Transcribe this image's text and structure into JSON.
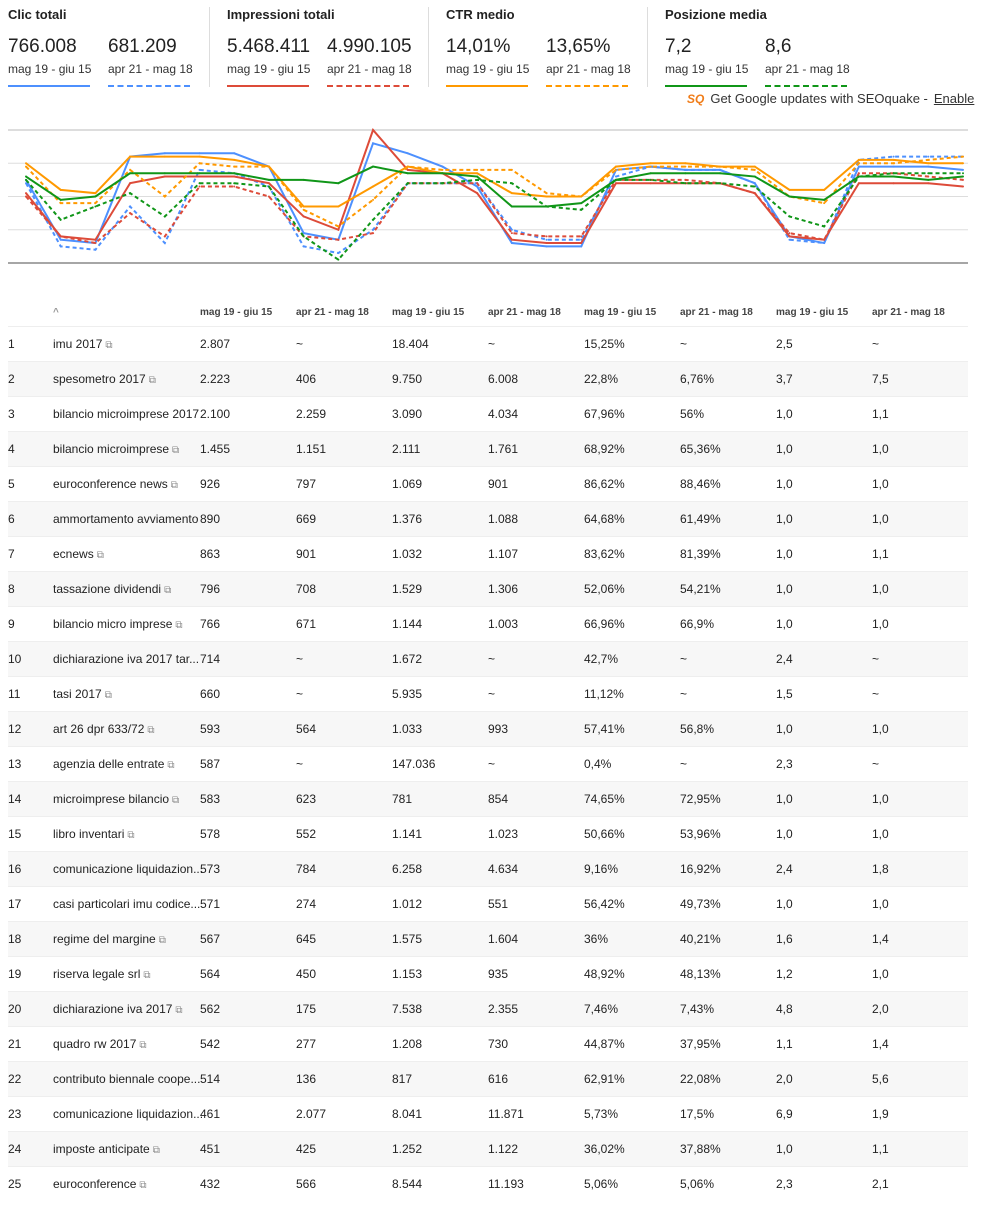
{
  "metrics": [
    {
      "title": "Clic totali",
      "current": "766.008",
      "previous": "681.209",
      "current_range": "mag 19 - giu 15",
      "previous_range": "apr 21 - mag 18",
      "color": "#4d90fe"
    },
    {
      "title": "Impressioni totali",
      "current": "5.468.411",
      "previous": "4.990.105",
      "current_range": "mag 19 - giu 15",
      "previous_range": "apr 21 - mag 18",
      "color": "#dd4b39"
    },
    {
      "title": "CTR medio",
      "current": "14,01%",
      "previous": "13,65%",
      "current_range": "mag 19 - giu 15",
      "previous_range": "apr 21 - mag 18",
      "color": "#ff9900"
    },
    {
      "title": "Posizione media",
      "current": "7,2",
      "previous": "8,6",
      "current_range": "mag 19 - giu 15",
      "previous_range": "apr 21 - mag 18",
      "color": "#109618"
    }
  ],
  "seoquake": {
    "logo": "SQ",
    "text": "Get Google updates with SEOquake -",
    "link": "Enable"
  },
  "chart_data": {
    "type": "line",
    "title": "",
    "xlabel": "",
    "ylabel": "",
    "note": "normalized relative scale, 28 daily points",
    "ylim": [
      0,
      4
    ],
    "grid": true,
    "series": [
      {
        "name": "Clic mag 19 - giu 15",
        "color": "#4d90fe",
        "dashed": false,
        "values": [
          2.5,
          0.7,
          0.6,
          3.2,
          3.3,
          3.3,
          3.3,
          2.9,
          0.9,
          0.7,
          3.6,
          3.3,
          2.9,
          2.3,
          0.6,
          0.5,
          0.5,
          2.8,
          2.9,
          2.8,
          2.8,
          2.4,
          0.8,
          0.6,
          2.9,
          2.9,
          2.9,
          2.8
        ]
      },
      {
        "name": "Clic apr 21 - mag 18",
        "color": "#4d90fe",
        "dashed": true,
        "values": [
          2.4,
          0.5,
          0.4,
          1.7,
          0.6,
          2.8,
          2.7,
          2.3,
          0.5,
          0.3,
          1.0,
          2.4,
          2.4,
          2.4,
          1.0,
          0.7,
          0.7,
          2.6,
          2.9,
          2.8,
          2.8,
          2.4,
          0.7,
          0.6,
          3.1,
          3.2,
          3.2,
          3.2
        ]
      },
      {
        "name": "Impressioni mag 19 - giu 15",
        "color": "#dd4b39",
        "dashed": false,
        "values": [
          2.1,
          0.8,
          0.7,
          2.4,
          2.6,
          2.6,
          2.6,
          2.4,
          1.4,
          1.0,
          4.0,
          2.8,
          2.7,
          2.1,
          0.7,
          0.6,
          0.6,
          2.4,
          2.4,
          2.4,
          2.4,
          2.1,
          0.8,
          0.7,
          2.4,
          2.4,
          2.4,
          2.3
        ]
      },
      {
        "name": "Impressioni apr 21 - mag 18",
        "color": "#dd4b39",
        "dashed": true,
        "values": [
          2.0,
          0.8,
          0.6,
          1.5,
          0.8,
          2.3,
          2.3,
          2.0,
          0.8,
          0.7,
          0.9,
          2.4,
          2.4,
          2.4,
          0.9,
          0.8,
          0.8,
          2.5,
          2.5,
          2.5,
          2.4,
          2.1,
          0.9,
          0.7,
          2.7,
          2.7,
          2.6,
          2.5
        ]
      },
      {
        "name": "CTR mag 19 - giu 15",
        "color": "#ff9900",
        "dashed": false,
        "values": [
          3.0,
          2.2,
          2.1,
          3.2,
          3.2,
          3.2,
          3.1,
          2.9,
          1.7,
          1.7,
          2.3,
          2.9,
          2.7,
          2.7,
          2.1,
          2.0,
          2.0,
          2.9,
          3.0,
          3.0,
          2.9,
          2.9,
          2.2,
          2.2,
          3.1,
          3.1,
          3.0,
          3.0
        ]
      },
      {
        "name": "CTR apr 21 - mag 18",
        "color": "#ff9900",
        "dashed": true,
        "values": [
          2.9,
          1.8,
          1.8,
          2.8,
          2.0,
          3.0,
          2.9,
          2.9,
          1.6,
          1.1,
          1.9,
          2.9,
          2.8,
          2.8,
          2.8,
          2.1,
          2.0,
          2.8,
          2.9,
          2.9,
          2.9,
          2.8,
          2.0,
          1.8,
          3.0,
          3.0,
          3.1,
          3.2
        ]
      },
      {
        "name": "Posizione mag 19 - giu 15",
        "color": "#109618",
        "dashed": false,
        "values": [
          2.6,
          1.9,
          2.0,
          2.7,
          2.7,
          2.7,
          2.7,
          2.5,
          2.5,
          2.4,
          2.9,
          2.7,
          2.7,
          2.6,
          1.7,
          1.7,
          1.8,
          2.5,
          2.7,
          2.7,
          2.7,
          2.6,
          2.0,
          1.9,
          2.6,
          2.6,
          2.5,
          2.6
        ]
      },
      {
        "name": "Posizione apr 21 - mag 18",
        "color": "#109618",
        "dashed": true,
        "values": [
          2.5,
          1.3,
          1.7,
          2.1,
          1.4,
          2.4,
          2.4,
          2.3,
          0.8,
          0.1,
          1.3,
          2.4,
          2.4,
          2.5,
          2.4,
          1.7,
          1.6,
          2.5,
          2.5,
          2.4,
          2.4,
          2.3,
          1.4,
          1.1,
          2.6,
          2.7,
          2.7,
          2.7
        ]
      }
    ]
  },
  "table": {
    "sort_indicator": "^",
    "headers": [
      "mag 19 - giu 15",
      "apr 21 - mag 18",
      "mag 19 - giu 15",
      "apr 21 - mag 18",
      "mag 19 - giu 15",
      "apr 21 - mag 18",
      "mag 19 - giu 15",
      "apr 21 - mag 18"
    ],
    "expand_icon": "»",
    "ext_icon": "⧉",
    "rows": [
      {
        "n": "1",
        "q": "imu 2017",
        "ext": true,
        "v": [
          "2.807",
          "~",
          "18.404",
          "~",
          "15,25%",
          "~",
          "2,5",
          "~"
        ]
      },
      {
        "n": "2",
        "q": "spesometro 2017",
        "ext": true,
        "v": [
          "2.223",
          "406",
          "9.750",
          "6.008",
          "22,8%",
          "6,76%",
          "3,7",
          "7,5"
        ]
      },
      {
        "n": "3",
        "q": "bilancio microimprese 2017",
        "ext": false,
        "v": [
          "2.100",
          "2.259",
          "3.090",
          "4.034",
          "67,96%",
          "56%",
          "1,0",
          "1,1"
        ]
      },
      {
        "n": "4",
        "q": "bilancio microimprese",
        "ext": true,
        "v": [
          "1.455",
          "1.151",
          "2.111",
          "1.761",
          "68,92%",
          "65,36%",
          "1,0",
          "1,0"
        ]
      },
      {
        "n": "5",
        "q": "euroconference news",
        "ext": true,
        "v": [
          "926",
          "797",
          "1.069",
          "901",
          "86,62%",
          "88,46%",
          "1,0",
          "1,0"
        ]
      },
      {
        "n": "6",
        "q": "ammortamento avviamento",
        "ext": false,
        "v": [
          "890",
          "669",
          "1.376",
          "1.088",
          "64,68%",
          "61,49%",
          "1,0",
          "1,0"
        ]
      },
      {
        "n": "7",
        "q": "ecnews",
        "ext": true,
        "v": [
          "863",
          "901",
          "1.032",
          "1.107",
          "83,62%",
          "81,39%",
          "1,0",
          "1,1"
        ]
      },
      {
        "n": "8",
        "q": "tassazione dividendi",
        "ext": true,
        "v": [
          "796",
          "708",
          "1.529",
          "1.306",
          "52,06%",
          "54,21%",
          "1,0",
          "1,0"
        ]
      },
      {
        "n": "9",
        "q": "bilancio micro imprese",
        "ext": true,
        "v": [
          "766",
          "671",
          "1.144",
          "1.003",
          "66,96%",
          "66,9%",
          "1,0",
          "1,0"
        ]
      },
      {
        "n": "10",
        "q": "dichiarazione iva 2017 tar...",
        "ext": false,
        "v": [
          "714",
          "~",
          "1.672",
          "~",
          "42,7%",
          "~",
          "2,4",
          "~"
        ]
      },
      {
        "n": "11",
        "q": "tasi 2017",
        "ext": true,
        "v": [
          "660",
          "~",
          "5.935",
          "~",
          "11,12%",
          "~",
          "1,5",
          "~"
        ]
      },
      {
        "n": "12",
        "q": "art 26 dpr 633/72",
        "ext": true,
        "v": [
          "593",
          "564",
          "1.033",
          "993",
          "57,41%",
          "56,8%",
          "1,0",
          "1,0"
        ]
      },
      {
        "n": "13",
        "q": "agenzia delle entrate",
        "ext": true,
        "v": [
          "587",
          "~",
          "147.036",
          "~",
          "0,4%",
          "~",
          "2,3",
          "~"
        ]
      },
      {
        "n": "14",
        "q": "microimprese bilancio",
        "ext": true,
        "v": [
          "583",
          "623",
          "781",
          "854",
          "74,65%",
          "72,95%",
          "1,0",
          "1,0"
        ]
      },
      {
        "n": "15",
        "q": "libro inventari",
        "ext": true,
        "v": [
          "578",
          "552",
          "1.141",
          "1.023",
          "50,66%",
          "53,96%",
          "1,0",
          "1,0"
        ]
      },
      {
        "n": "16",
        "q": "comunicazione liquidazion...",
        "ext": false,
        "v": [
          "573",
          "784",
          "6.258",
          "4.634",
          "9,16%",
          "16,92%",
          "2,4",
          "1,8"
        ]
      },
      {
        "n": "17",
        "q": "casi particolari imu codice...",
        "ext": false,
        "v": [
          "571",
          "274",
          "1.012",
          "551",
          "56,42%",
          "49,73%",
          "1,0",
          "1,0"
        ]
      },
      {
        "n": "18",
        "q": "regime del margine",
        "ext": true,
        "v": [
          "567",
          "645",
          "1.575",
          "1.604",
          "36%",
          "40,21%",
          "1,6",
          "1,4"
        ]
      },
      {
        "n": "19",
        "q": "riserva legale srl",
        "ext": true,
        "v": [
          "564",
          "450",
          "1.153",
          "935",
          "48,92%",
          "48,13%",
          "1,2",
          "1,0"
        ]
      },
      {
        "n": "20",
        "q": "dichiarazione iva 2017",
        "ext": true,
        "v": [
          "562",
          "175",
          "7.538",
          "2.355",
          "7,46%",
          "7,43%",
          "4,8",
          "2,0"
        ]
      },
      {
        "n": "21",
        "q": "quadro rw 2017",
        "ext": true,
        "v": [
          "542",
          "277",
          "1.208",
          "730",
          "44,87%",
          "37,95%",
          "1,1",
          "1,4"
        ]
      },
      {
        "n": "22",
        "q": "contributo biennale coope...",
        "ext": false,
        "v": [
          "514",
          "136",
          "817",
          "616",
          "62,91%",
          "22,08%",
          "2,0",
          "5,6"
        ]
      },
      {
        "n": "23",
        "q": "comunicazione liquidazion...",
        "ext": false,
        "v": [
          "461",
          "2.077",
          "8.041",
          "11.871",
          "5,73%",
          "17,5%",
          "6,9",
          "1,9"
        ]
      },
      {
        "n": "24",
        "q": "imposte anticipate",
        "ext": true,
        "v": [
          "451",
          "425",
          "1.252",
          "1.122",
          "36,02%",
          "37,88%",
          "1,0",
          "1,1"
        ]
      },
      {
        "n": "25",
        "q": "euroconference",
        "ext": true,
        "v": [
          "432",
          "566",
          "8.544",
          "11.193",
          "5,06%",
          "5,06%",
          "2,3",
          "2,1"
        ]
      }
    ]
  }
}
